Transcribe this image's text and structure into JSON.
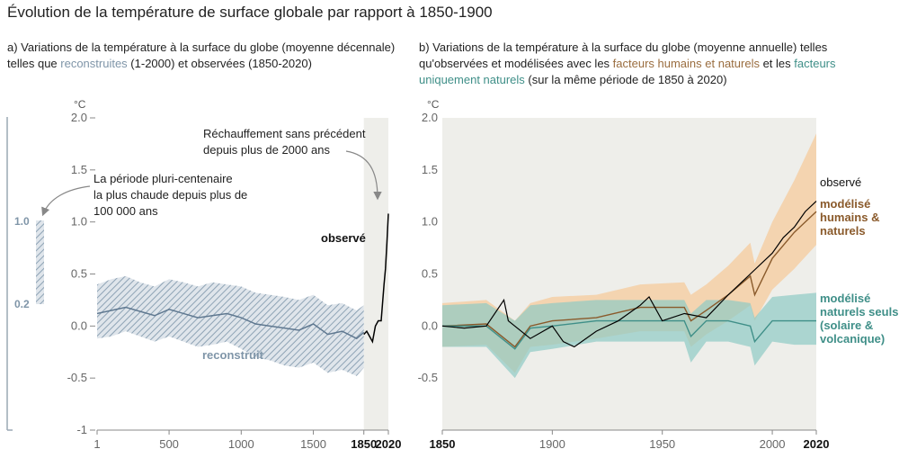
{
  "title": "Évolution de la température de surface globale par rapport à 1850-1900",
  "panel_a": {
    "subtitle_pre": "a) Variations de la température à la surface du globe (moyenne décennale) telles que ",
    "subtitle_recon": "reconstruites",
    "subtitle_post": " (1-2000) et observées (1850-2020)",
    "unit": "°C",
    "annotation_recent": [
      "Réchauffement sans précédent",
      "depuis plus de 2000 ans"
    ],
    "annotation_warm": [
      "La période pluri-centenaire",
      "la plus chaude depuis plus de",
      "100 000 ans"
    ],
    "label_observed": "observé",
    "label_reconstructed": "reconstruit",
    "range_top": "1.0",
    "range_bottom": "0.2"
  },
  "panel_b": {
    "subtitle_pre": "b) Variations de la température à la surface du globe (moyenne annuelle) telles qu'observées et modélisées avec les ",
    "subtitle_human": "facteurs humains et naturels",
    "subtitle_mid": " et les ",
    "subtitle_nat": "facteurs uniquement naturels",
    "subtitle_post": " (sur la même période de 1850 à 2020)",
    "unit": "°C",
    "label_observed": "observé",
    "label_human": [
      "modélisé",
      "humains &",
      "naturels"
    ],
    "label_natural": [
      "modélisé",
      "naturels seuls",
      "(solaire &",
      "volcanique)"
    ]
  },
  "colors": {
    "reconstructed": "#7f95a8",
    "observed": "#000000",
    "human": "#8a5a2b",
    "human_band": "#f5cfa6",
    "natural": "#3f8f88",
    "natural_band": "#8fcac4",
    "recent_shade": "#eeeeea",
    "axis": "#888888"
  },
  "chart_data": [
    {
      "type": "line",
      "xlim": [
        1,
        2020
      ],
      "ylim": [
        -1,
        2
      ],
      "x_ticks": [
        "1",
        "500",
        "1000",
        "1500",
        "1850",
        "2020"
      ],
      "y_ticks": [
        "2.0",
        "1.5",
        "1.0",
        "0.5",
        "0.0",
        "-0.5",
        "-1"
      ],
      "series": [
        {
          "name": "reconstruit",
          "kind": "band",
          "x": [
            1,
            100,
            200,
            300,
            400,
            500,
            600,
            700,
            800,
            900,
            1000,
            1100,
            1200,
            1300,
            1400,
            1500,
            1600,
            1700,
            1800,
            1850
          ],
          "values": [
            0.12,
            0.15,
            0.18,
            0.14,
            0.1,
            0.16,
            0.12,
            0.08,
            0.1,
            0.12,
            0.08,
            0.02,
            0.0,
            -0.02,
            -0.04,
            0.02,
            -0.08,
            -0.05,
            -0.12,
            -0.06
          ],
          "lower": [
            -0.12,
            -0.1,
            -0.05,
            -0.1,
            -0.15,
            -0.1,
            -0.15,
            -0.2,
            -0.18,
            -0.15,
            -0.22,
            -0.3,
            -0.33,
            -0.38,
            -0.4,
            -0.35,
            -0.45,
            -0.42,
            -0.48,
            -0.4
          ],
          "upper": [
            0.4,
            0.45,
            0.48,
            0.42,
            0.38,
            0.45,
            0.42,
            0.38,
            0.42,
            0.4,
            0.38,
            0.32,
            0.3,
            0.28,
            0.25,
            0.3,
            0.2,
            0.22,
            0.15,
            0.2
          ]
        },
        {
          "name": "observé",
          "x": [
            1850,
            1870,
            1890,
            1910,
            1930,
            1950,
            1970,
            1990,
            2000,
            2010,
            2020
          ],
          "values": [
            -0.08,
            -0.05,
            -0.1,
            -0.15,
            0.0,
            0.05,
            0.05,
            0.4,
            0.55,
            0.8,
            1.08
          ]
        }
      ]
    },
    {
      "type": "line",
      "xlim": [
        1850,
        2020
      ],
      "ylim": [
        -1,
        2
      ],
      "x_ticks": [
        "1850",
        "1900",
        "1950",
        "2000",
        "2020"
      ],
      "y_ticks": [
        "2.0",
        "1.5",
        "1.0",
        "0.5",
        "0.0",
        "-0.5"
      ],
      "series": [
        {
          "name": "observé",
          "x": [
            1850,
            1860,
            1870,
            1878,
            1880,
            1890,
            1900,
            1905,
            1910,
            1920,
            1930,
            1940,
            1944,
            1950,
            1960,
            1970,
            1980,
            1990,
            2000,
            2005,
            2010,
            2015,
            2020
          ],
          "values": [
            0.0,
            -0.02,
            0.0,
            0.25,
            0.05,
            -0.12,
            0.0,
            -0.15,
            -0.2,
            -0.05,
            0.05,
            0.2,
            0.28,
            0.05,
            0.12,
            0.08,
            0.3,
            0.5,
            0.7,
            0.85,
            0.95,
            1.1,
            1.2
          ]
        },
        {
          "name": "modélisé humains & naturels",
          "kind": "band",
          "x": [
            1850,
            1870,
            1883,
            1890,
            1900,
            1920,
            1940,
            1960,
            1963,
            1970,
            1980,
            1990,
            1992,
            2000,
            2010,
            2020
          ],
          "values": [
            0.0,
            0.02,
            -0.2,
            0.0,
            0.05,
            0.08,
            0.18,
            0.18,
            0.05,
            0.15,
            0.3,
            0.48,
            0.3,
            0.65,
            0.9,
            1.1
          ],
          "lower": [
            -0.2,
            -0.18,
            -0.45,
            -0.2,
            -0.18,
            -0.12,
            -0.05,
            -0.05,
            -0.2,
            -0.08,
            0.05,
            0.2,
            0.05,
            0.35,
            0.55,
            0.78
          ],
          "upper": [
            0.22,
            0.25,
            0.05,
            0.22,
            0.28,
            0.3,
            0.4,
            0.42,
            0.3,
            0.4,
            0.58,
            0.8,
            0.6,
            1.0,
            1.4,
            1.85
          ]
        },
        {
          "name": "modélisé naturels seuls (solaire & volcanique)",
          "kind": "band",
          "x": [
            1850,
            1870,
            1883,
            1890,
            1900,
            1920,
            1940,
            1960,
            1963,
            1970,
            1980,
            1990,
            1992,
            2000,
            2010,
            2020
          ],
          "values": [
            0.0,
            0.0,
            -0.22,
            -0.02,
            0.0,
            0.05,
            0.05,
            0.05,
            -0.1,
            0.05,
            0.05,
            0.0,
            -0.15,
            0.05,
            0.05,
            0.05
          ],
          "lower": [
            -0.2,
            -0.2,
            -0.5,
            -0.25,
            -0.22,
            -0.15,
            -0.15,
            -0.15,
            -0.35,
            -0.15,
            -0.15,
            -0.2,
            -0.38,
            -0.15,
            -0.18,
            -0.18
          ],
          "upper": [
            0.2,
            0.22,
            0.05,
            0.2,
            0.22,
            0.25,
            0.25,
            0.25,
            0.12,
            0.25,
            0.25,
            0.22,
            0.08,
            0.28,
            0.3,
            0.32
          ]
        }
      ]
    }
  ]
}
